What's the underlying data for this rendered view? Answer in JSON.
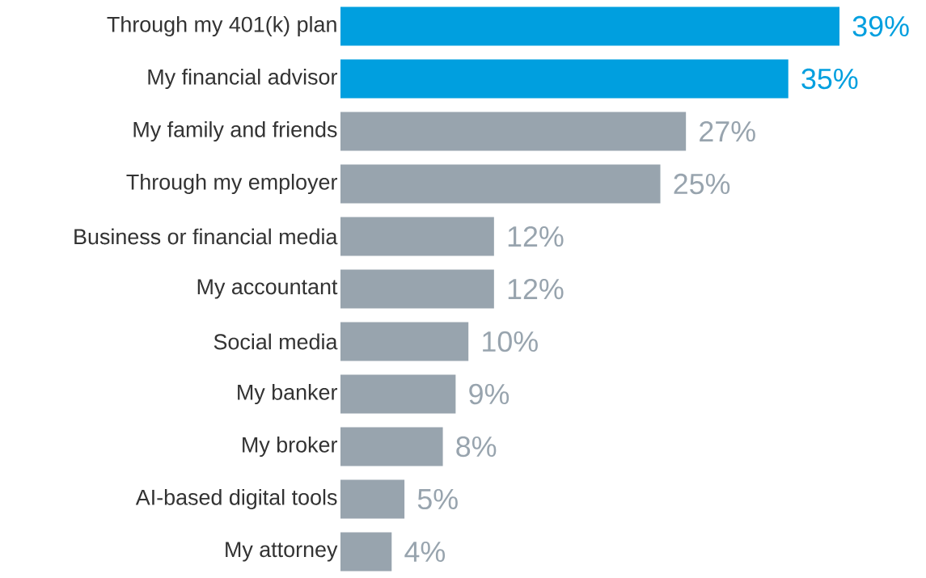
{
  "chart_data": {
    "type": "bar",
    "orientation": "horizontal",
    "categories": [
      "Through my 401(k) plan",
      "My financial advisor",
      "My family and friends",
      "Through my employer",
      "Business or financial media",
      "My accountant",
      "Social media",
      "My banker",
      "My broker",
      "AI-based digital tools",
      "My attorney"
    ],
    "values": [
      39,
      35,
      27,
      25,
      12,
      12,
      10,
      9,
      8,
      5,
      4
    ],
    "value_labels": [
      "39%",
      "35%",
      "27%",
      "25%",
      "12%",
      "12%",
      "10%",
      "9%",
      "8%",
      "5%",
      "4%"
    ],
    "colors": [
      "#009fdf",
      "#009fdf",
      "#98a4ae",
      "#98a4ae",
      "#98a4ae",
      "#98a4ae",
      "#98a4ae",
      "#98a4ae",
      "#98a4ae",
      "#98a4ae",
      "#98a4ae"
    ]
  }
}
